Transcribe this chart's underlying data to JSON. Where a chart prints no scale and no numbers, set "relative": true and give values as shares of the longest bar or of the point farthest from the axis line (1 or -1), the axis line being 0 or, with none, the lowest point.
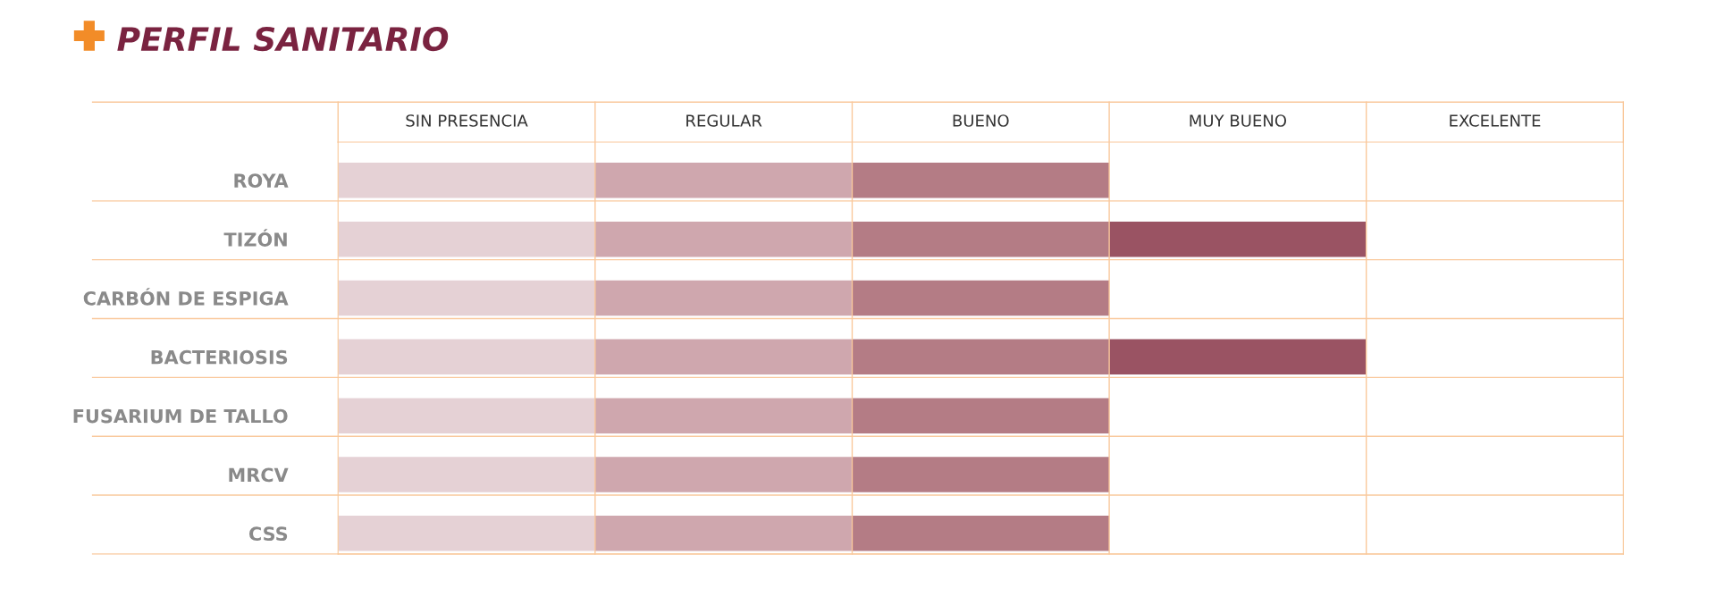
{
  "chart_data": {
    "type": "bar",
    "orientation": "horizontal",
    "stacked": true,
    "relative": true,
    "title": "PERFIL SANITARIO",
    "categories": [
      "ROYA",
      "TIZÓN",
      "CARBÓN DE ESPIGA",
      "BACTERIOSIS",
      "FUSARIUM DE TALLO",
      "MRCV",
      "CSS"
    ],
    "series": [
      {
        "color": "#e5d1d5",
        "values": [
          0.25,
          0.25,
          0.25,
          0.25,
          0.25,
          0.25,
          0.25
        ]
      },
      {
        "color": "#cfa7ae",
        "values": [
          0.25,
          0.25,
          0.25,
          0.25,
          0.25,
          0.25,
          0.25
        ]
      },
      {
        "color": "#b47c85",
        "values": [
          0.25,
          0.25,
          0.25,
          0.25,
          0.25,
          0.25,
          0.25
        ]
      },
      {
        "color": "#9a5363",
        "values": [
          null,
          0.25,
          null,
          0.25,
          null,
          null,
          null
        ]
      }
    ],
    "annotations": [
      "SIN PRESENCIA",
      "REGULAR",
      "BUENO",
      "MUY BUENO",
      "EXCELENTE"
    ],
    "grid": true
  }
}
